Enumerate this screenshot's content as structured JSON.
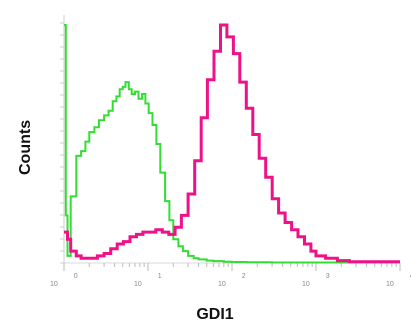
{
  "chart_data": {
    "type": "line",
    "xlabel": "GDI1",
    "ylabel": "Counts",
    "x_scale": "log",
    "xlim": [
      1,
      10000
    ],
    "x_tick_labels": [
      {
        "base": "10",
        "exp": "0",
        "value": 1
      },
      {
        "base": "10",
        "exp": "1",
        "value": 10
      },
      {
        "base": "10",
        "exp": "2",
        "value": 100
      },
      {
        "base": "10",
        "exp": "3",
        "value": 1000
      },
      {
        "base": "10",
        "exp": "4",
        "value": 10000
      }
    ],
    "ylim": [
      0,
      100
    ],
    "series": [
      {
        "color": "#33dd33",
        "x": [
          1.0,
          1.05,
          1.1,
          1.2,
          1.4,
          1.6,
          1.8,
          2.0,
          2.3,
          2.6,
          3.0,
          3.4,
          3.8,
          4.2,
          4.6,
          5.0,
          5.4,
          5.9,
          6.4,
          7.0,
          7.7,
          8.5,
          9.3,
          10.2,
          11.3,
          12.6,
          14,
          16,
          18,
          20,
          23,
          26,
          30,
          35,
          40,
          50,
          60,
          80,
          100,
          150,
          300,
          1000,
          10000
        ],
        "y": [
          100,
          20,
          3,
          28,
          45,
          47,
          51,
          55,
          57,
          60,
          62,
          64,
          68,
          70,
          73,
          74,
          76,
          73,
          71,
          72,
          69,
          71,
          67,
          63,
          58,
          50,
          38,
          26,
          18,
          10,
          7,
          5,
          3,
          2,
          1.5,
          1,
          0.8,
          0.5,
          0.4,
          0.3,
          0.2,
          0.2,
          0.2
        ]
      },
      {
        "color": "#ee1188",
        "x": [
          1.0,
          1.1,
          1.2,
          1.4,
          1.6,
          2.0,
          2.5,
          3.0,
          3.6,
          4.3,
          5.1,
          6.1,
          7.3,
          8.7,
          10.4,
          12.4,
          14.8,
          17.7,
          21,
          25,
          30,
          36,
          43,
          51,
          61,
          73,
          87,
          104,
          124,
          148,
          177,
          211,
          252,
          301,
          359,
          429,
          512,
          611,
          729,
          870,
          1000,
          1300,
          1800,
          2500,
          10000
        ],
        "y": [
          13,
          10,
          5,
          3,
          2,
          2,
          3,
          4,
          6,
          8,
          9,
          11,
          12,
          13,
          13,
          14,
          13,
          12,
          15,
          20,
          29,
          43,
          61,
          77,
          89,
          100,
          95,
          88,
          76,
          65,
          54,
          44,
          36,
          27,
          21,
          17,
          14,
          11,
          8,
          5,
          3,
          2,
          1,
          0.5,
          0.5
        ]
      }
    ]
  }
}
